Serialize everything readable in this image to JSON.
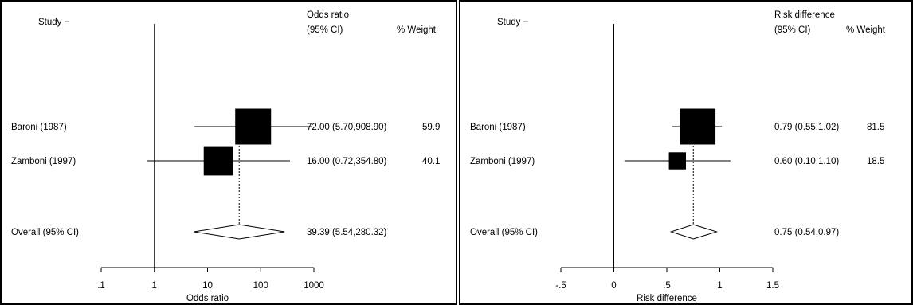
{
  "panels": [
    {
      "study_header": "Study",
      "effect_header_line1": "Odds ratio",
      "effect_header_line2": "(95% CI)",
      "weight_header": "% Weight"
    },
    {
      "study_header": "Study",
      "effect_header_line1": "Risk difference",
      "effect_header_line2": "(95% CI)",
      "weight_header": "% Weight"
    }
  ],
  "chart_data": [
    {
      "type": "forest",
      "scale": "log",
      "xlabel": "Odds ratio",
      "xticks": [
        0.1,
        1,
        10,
        100,
        1000
      ],
      "xtick_labels": [
        ".1",
        "1",
        "10",
        "100",
        "1000"
      ],
      "xlim": [
        0.1,
        1000
      ],
      "null_line": 1,
      "studies": [
        {
          "label": "Baroni (1987)",
          "estimate": 72.0,
          "lower": 5.7,
          "upper": 908.9,
          "weight": 59.9,
          "ci_text": "72.00 (5.70,908.90)",
          "weight_text": "59.9"
        },
        {
          "label": "Zamboni (1997)",
          "estimate": 16.0,
          "lower": 0.72,
          "upper": 354.8,
          "weight": 40.1,
          "ci_text": "16.00 (0.72,354.80)",
          "weight_text": "40.1"
        }
      ],
      "overall": {
        "label": "Overall (95% CI)",
        "estimate": 39.39,
        "lower": 5.54,
        "upper": 280.32,
        "ci_text": "39.39 (5.54,280.32)"
      }
    },
    {
      "type": "forest",
      "scale": "linear",
      "xlabel": "Risk difference",
      "xticks": [
        -0.5,
        0,
        0.5,
        1,
        1.5
      ],
      "xtick_labels": [
        "-.5",
        "0",
        ".5",
        "1",
        "1.5"
      ],
      "xlim": [
        -0.5,
        1.5
      ],
      "null_line": 0,
      "studies": [
        {
          "label": "Baroni (1987)",
          "estimate": 0.79,
          "lower": 0.55,
          "upper": 1.02,
          "weight": 81.5,
          "ci_text": "0.79 (0.55,1.02)",
          "weight_text": "81.5"
        },
        {
          "label": "Zamboni (1997)",
          "estimate": 0.6,
          "lower": 0.1,
          "upper": 1.1,
          "weight": 18.5,
          "ci_text": "0.60 (0.10,1.10)",
          "weight_text": "18.5"
        }
      ],
      "overall": {
        "label": "Overall (95% CI)",
        "estimate": 0.75,
        "lower": 0.54,
        "upper": 0.97,
        "ci_text": "0.75 (0.54,0.97)"
      }
    }
  ]
}
